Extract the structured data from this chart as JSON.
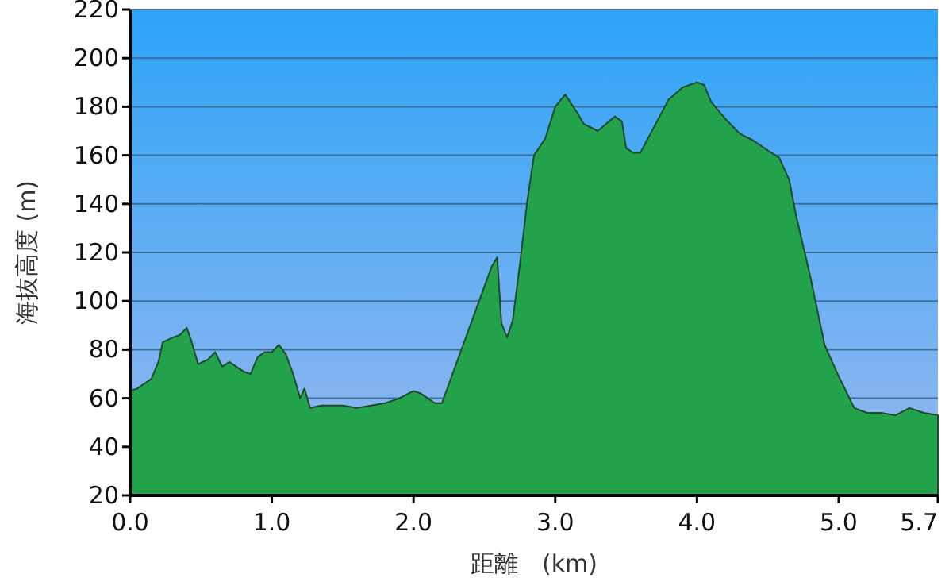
{
  "chart_data": {
    "type": "area",
    "xlabel": "距離　(km)",
    "ylabel": "海抜高度 (m)",
    "xlim": [
      0,
      5.7
    ],
    "xticks": [
      {
        "value": 0,
        "label": "0.0"
      },
      {
        "value": 1,
        "label": "1.0"
      },
      {
        "value": 2,
        "label": "2.0"
      },
      {
        "value": 3,
        "label": "3.0"
      },
      {
        "value": 4,
        "label": "4.0"
      },
      {
        "value": 5,
        "label": "5.0"
      },
      5.7
    ],
    "ylim": [
      20,
      220
    ],
    "yticks": [
      20,
      40,
      60,
      80,
      100,
      120,
      140,
      160,
      180,
      200,
      220
    ],
    "grid": "y",
    "series": [
      {
        "color": "#22a24a",
        "x": [
          0,
          0.05,
          0.1,
          0.15,
          0.2,
          0.23,
          0.3,
          0.35,
          0.4,
          0.43,
          0.48,
          0.55,
          0.6,
          0.65,
          0.7,
          0.75,
          0.8,
          0.85,
          0.9,
          0.95,
          1.0,
          1.05,
          1.1,
          1.15,
          1.2,
          1.23,
          1.27,
          1.35,
          1.5,
          1.6,
          1.7,
          1.8,
          1.9,
          2.0,
          2.05,
          2.1,
          2.15,
          2.2,
          2.25,
          2.35,
          2.45,
          2.55,
          2.59,
          2.62,
          2.66,
          2.7,
          2.75,
          2.8,
          2.85,
          2.93,
          3.0,
          3.07,
          3.15,
          3.2,
          3.3,
          3.42,
          3.47,
          3.5,
          3.55,
          3.6,
          3.7,
          3.8,
          3.9,
          4.0,
          4.05,
          4.1,
          4.2,
          4.3,
          4.4,
          4.5,
          4.58,
          4.65,
          4.7,
          4.8,
          4.9,
          5.0,
          5.11,
          5.2,
          5.3,
          5.4,
          5.5,
          5.6,
          5.7
        ],
        "values": [
          63,
          64,
          66,
          68,
          75,
          83,
          85,
          86,
          89,
          84,
          74,
          76,
          79,
          73,
          75,
          73,
          71,
          70,
          77,
          79,
          79,
          82,
          78,
          70,
          60,
          64,
          56,
          57,
          57,
          56,
          57,
          58,
          60,
          63,
          62,
          60,
          58,
          58,
          66,
          82,
          98,
          114,
          118,
          91,
          85,
          92,
          115,
          140,
          160,
          167,
          180,
          185,
          178,
          173,
          170,
          176,
          174,
          163,
          161,
          161,
          172,
          183,
          188,
          190,
          189,
          182,
          175,
          169,
          166,
          162,
          159,
          150,
          135,
          110,
          82,
          69,
          56,
          54,
          54,
          53,
          56,
          54,
          53
        ]
      }
    ]
  }
}
